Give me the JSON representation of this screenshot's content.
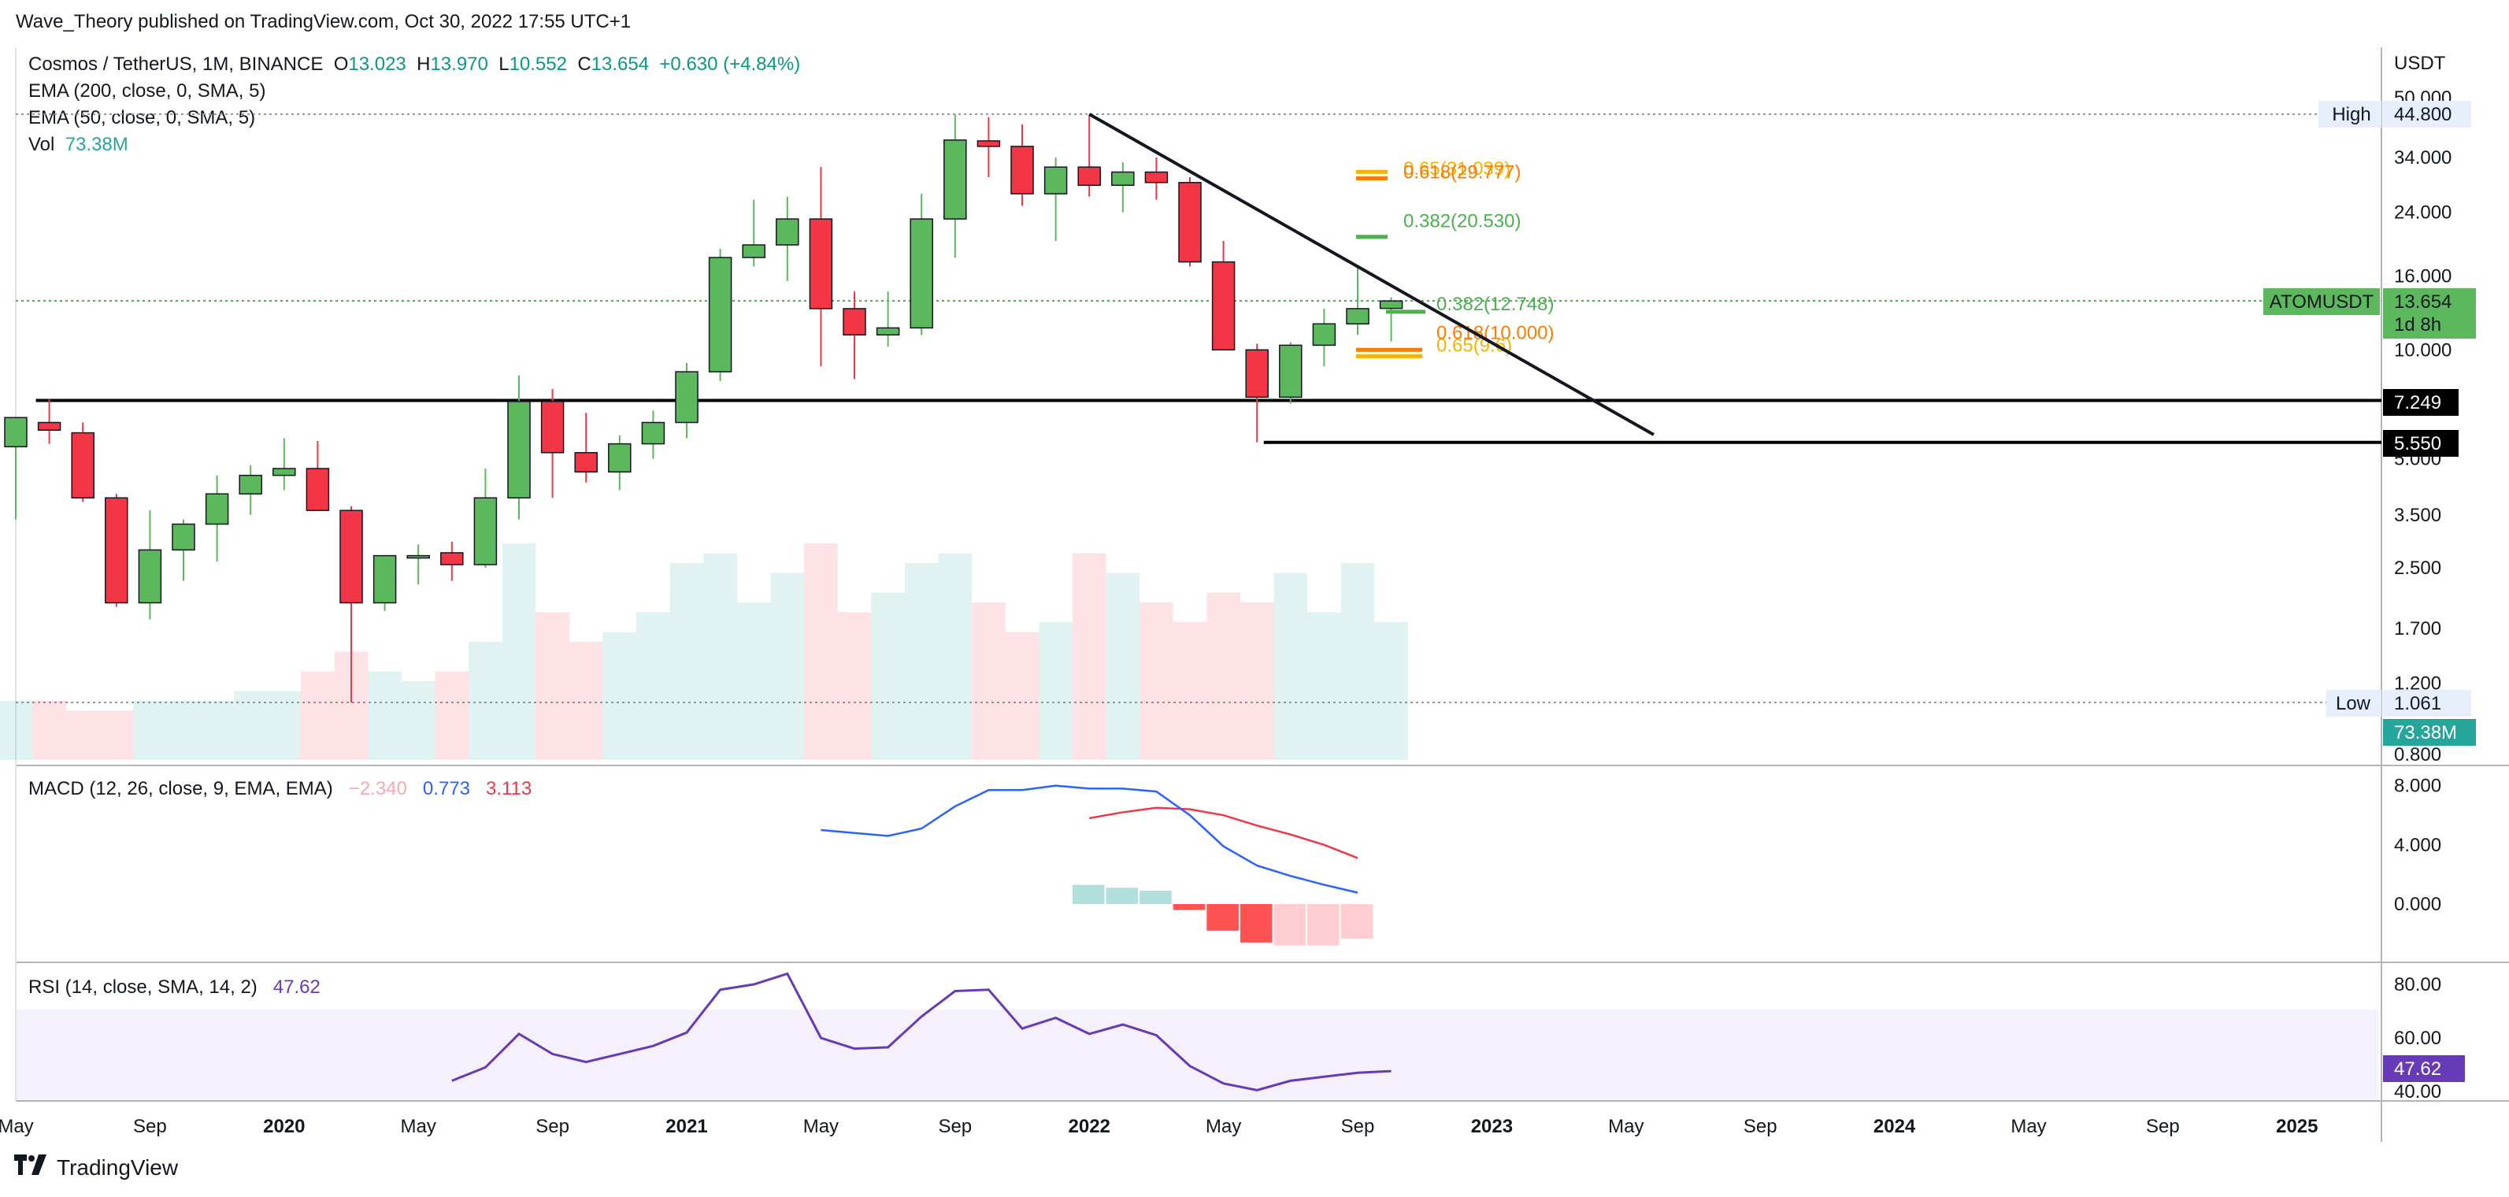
{
  "header": {
    "published": "Wave_Theory published on TradingView.com, Oct 30, 2022 17:55 UTC+1"
  },
  "footer": {
    "brand": "TradingView"
  },
  "legend": {
    "symbol": "Cosmos / TetherUS, 1M, BINANCE",
    "o_label": "O",
    "o_val": "13.023",
    "h_label": "H",
    "h_val": "13.970",
    "l_label": "L",
    "l_val": "10.552",
    "c_label": "C",
    "c_val": "13.654",
    "change": "+0.630 (+4.84%)",
    "ema200": "EMA (200, close, 0, SMA, 5)",
    "ema50": "EMA (50, close, 0, SMA, 5)",
    "vol_label": "Vol",
    "vol_val": "73.38M",
    "macd_label": "MACD (12, 26, close, 9, EMA, EMA)",
    "macd_hist": "−2.340",
    "macd_line": "0.773",
    "macd_signal": "3.113",
    "rsi_label": "RSI (14, close, SMA, 14, 2)",
    "rsi_val": "47.62"
  },
  "price_axis": {
    "unit": "USDT",
    "ticks": [
      "50.000",
      "34.000",
      "24.000",
      "16.000",
      "10.000",
      "5.000",
      "3.500",
      "2.500",
      "1.700",
      "1.200",
      "0.800"
    ],
    "high_label": "High",
    "high_val": "44.800",
    "low_label": "Low",
    "low_val": "1.061",
    "symbol_tag": "ATOMUSDT",
    "last_price": "13.654",
    "countdown": "1d 8h",
    "vol_tag": "73.38M",
    "level_1": "7.249",
    "level_2": "5.550"
  },
  "macd_axis": {
    "ticks": [
      "8.000",
      "4.000",
      "0.000"
    ]
  },
  "rsi_axis": {
    "ticks": [
      "80.00",
      "60.00",
      "40.00"
    ],
    "value_tag": "47.62"
  },
  "time_axis": {
    "labels": [
      {
        "t": "May",
        "x": 0,
        "bold": false
      },
      {
        "t": "Sep",
        "x": 4,
        "bold": false
      },
      {
        "t": "2020",
        "x": 8,
        "bold": true
      },
      {
        "t": "May",
        "x": 12,
        "bold": false
      },
      {
        "t": "Sep",
        "x": 16,
        "bold": false
      },
      {
        "t": "2021",
        "x": 20,
        "bold": true
      },
      {
        "t": "May",
        "x": 24,
        "bold": false
      },
      {
        "t": "Sep",
        "x": 28,
        "bold": false
      },
      {
        "t": "2022",
        "x": 32,
        "bold": true
      },
      {
        "t": "May",
        "x": 36,
        "bold": false
      },
      {
        "t": "Sep",
        "x": 40,
        "bold": false
      },
      {
        "t": "2023",
        "x": 44,
        "bold": true
      },
      {
        "t": "May",
        "x": 48,
        "bold": false
      },
      {
        "t": "Sep",
        "x": 52,
        "bold": false
      },
      {
        "t": "2024",
        "x": 56,
        "bold": true
      },
      {
        "t": "May",
        "x": 60,
        "bold": false
      },
      {
        "t": "Sep",
        "x": 64,
        "bold": false
      },
      {
        "t": "2025",
        "x": 68,
        "bold": true
      }
    ]
  },
  "fib_labels": {
    "upper_618": "0.618(29.777)",
    "upper_hidden": "0.65(31.039)",
    "upper_382": "0.382(20.530)",
    "lower_382": "0.382(12.748)",
    "lower_618": "0.618(10.000)",
    "lower_hidden": "0.65(9.6)"
  },
  "colors": {
    "up": "#5cb85c",
    "down": "#f23645",
    "macd": "#2962ff",
    "signal": "#f23645",
    "rsi": "#673ab7",
    "fib_gold": "#f5b400",
    "fib_orange": "#ff7b00",
    "fib_green": "#4caf50"
  },
  "chart_data": {
    "type": "candlestick",
    "title": "Cosmos / TetherUS, 1M, BINANCE",
    "x_start": "2019-05",
    "interval": "1M",
    "scale": "log",
    "candles": [
      {
        "o": 5.4,
        "h": 6.2,
        "l": 3.4,
        "c": 6.5
      },
      {
        "o": 6.3,
        "h": 7.3,
        "l": 5.5,
        "c": 6.0
      },
      {
        "o": 5.9,
        "h": 6.3,
        "l": 3.8,
        "c": 3.9
      },
      {
        "o": 3.9,
        "h": 4.0,
        "l": 1.95,
        "c": 2.0
      },
      {
        "o": 2.0,
        "h": 3.6,
        "l": 1.8,
        "c": 2.8
      },
      {
        "o": 2.8,
        "h": 3.4,
        "l": 2.3,
        "c": 3.3
      },
      {
        "o": 3.3,
        "h": 4.5,
        "l": 2.6,
        "c": 4.0
      },
      {
        "o": 4.0,
        "h": 4.8,
        "l": 3.5,
        "c": 4.5
      },
      {
        "o": 4.5,
        "h": 5.7,
        "l": 4.1,
        "c": 4.7
      },
      {
        "o": 4.7,
        "h": 5.6,
        "l": 3.8,
        "c": 3.6
      },
      {
        "o": 3.6,
        "h": 3.7,
        "l": 1.06,
        "c": 2.0
      },
      {
        "o": 2.0,
        "h": 2.7,
        "l": 1.9,
        "c": 2.7
      },
      {
        "o": 2.7,
        "h": 2.9,
        "l": 2.25,
        "c": 2.7
      },
      {
        "o": 2.75,
        "h": 2.95,
        "l": 2.3,
        "c": 2.55
      },
      {
        "o": 2.55,
        "h": 4.7,
        "l": 2.5,
        "c": 3.9
      },
      {
        "o": 3.9,
        "h": 8.5,
        "l": 3.4,
        "c": 7.2
      },
      {
        "o": 7.2,
        "h": 7.8,
        "l": 3.9,
        "c": 5.2
      },
      {
        "o": 5.2,
        "h": 6.7,
        "l": 4.3,
        "c": 4.6
      },
      {
        "o": 4.6,
        "h": 5.8,
        "l": 4.1,
        "c": 5.5
      },
      {
        "o": 5.5,
        "h": 6.8,
        "l": 5.0,
        "c": 6.3
      },
      {
        "o": 6.3,
        "h": 9.2,
        "l": 5.7,
        "c": 8.7
      },
      {
        "o": 8.7,
        "h": 19.0,
        "l": 8.2,
        "c": 18.0
      },
      {
        "o": 18.0,
        "h": 26.0,
        "l": 17.0,
        "c": 19.5
      },
      {
        "o": 19.5,
        "h": 26.5,
        "l": 15.5,
        "c": 23.0
      },
      {
        "o": 23.0,
        "h": 32.0,
        "l": 9.0,
        "c": 13.0
      },
      {
        "o": 13.0,
        "h": 14.5,
        "l": 8.3,
        "c": 11.0
      },
      {
        "o": 11.0,
        "h": 14.5,
        "l": 10.2,
        "c": 11.5
      },
      {
        "o": 11.5,
        "h": 27.0,
        "l": 11.0,
        "c": 23.0
      },
      {
        "o": 23.0,
        "h": 44.8,
        "l": 18.0,
        "c": 38.0
      },
      {
        "o": 37.8,
        "h": 44.0,
        "l": 30.0,
        "c": 36.5
      },
      {
        "o": 36.5,
        "h": 42.0,
        "l": 25.0,
        "c": 27.0
      },
      {
        "o": 27.0,
        "h": 34.0,
        "l": 20.0,
        "c": 32.0
      },
      {
        "o": 32.0,
        "h": 44.5,
        "l": 26.5,
        "c": 28.5
      },
      {
        "o": 28.5,
        "h": 33.0,
        "l": 24.0,
        "c": 31.0
      },
      {
        "o": 31.0,
        "h": 34.0,
        "l": 26.0,
        "c": 29.0
      },
      {
        "o": 29.0,
        "h": 30.0,
        "l": 17.0,
        "c": 17.5
      },
      {
        "o": 17.5,
        "h": 20.0,
        "l": 10.0,
        "c": 10.0
      },
      {
        "o": 10.0,
        "h": 10.4,
        "l": 5.55,
        "c": 7.4
      },
      {
        "o": 7.4,
        "h": 10.5,
        "l": 7.1,
        "c": 10.3
      },
      {
        "o": 10.3,
        "h": 13.0,
        "l": 9.0,
        "c": 11.8
      },
      {
        "o": 11.8,
        "h": 17.0,
        "l": 11.0,
        "c": 13.0
      },
      {
        "o": 13.02,
        "h": 13.97,
        "l": 10.55,
        "c": 13.65
      }
    ],
    "volume": [
      6,
      6,
      5,
      5,
      6,
      6,
      6,
      7,
      7,
      9,
      11,
      9,
      8,
      9,
      12,
      22,
      15,
      12,
      13,
      15,
      20,
      21,
      16,
      19,
      22,
      15,
      17,
      20,
      21,
      16,
      13,
      14,
      21,
      19,
      16,
      14,
      17,
      16,
      19,
      15,
      20,
      14
    ],
    "macd": {
      "start_index": 24,
      "line": [
        5.0,
        4.8,
        4.6,
        5.1,
        6.6,
        7.7,
        7.7,
        8.0,
        7.8,
        7.8,
        7.6,
        6.0,
        3.9,
        2.6,
        1.9,
        1.3,
        0.77
      ],
      "signal_start_index": 32,
      "signal": [
        5.8,
        6.2,
        6.5,
        6.4,
        6.0,
        5.3,
        4.7,
        4.0,
        3.11
      ],
      "hist_start_index": 32,
      "hist": [
        1.3,
        1.1,
        0.9,
        -0.4,
        -1.8,
        -2.6,
        -2.8,
        -2.8,
        -2.34
      ]
    },
    "rsi": {
      "start_index": 13,
      "values": [
        44.0,
        49.0,
        61.5,
        54.0,
        51.0,
        54.0,
        57.0,
        62.0,
        78.0,
        80.0,
        84.0,
        60.0,
        56.0,
        56.5,
        68.0,
        77.5,
        78.0,
        63.5,
        67.5,
        61.5,
        65.0,
        61.0,
        49.5,
        43.0,
        40.5,
        44.0,
        45.5,
        47.0,
        47.62
      ],
      "ylim": [
        40,
        80
      ]
    },
    "horizontal_levels": [
      7.249,
      5.55
    ],
    "fib_levels": [
      29.777,
      31.039,
      20.53,
      12.748,
      10.0,
      9.6
    ],
    "trendline": {
      "from": {
        "x": 32,
        "y": 44.8
      },
      "to": {
        "x": 49,
        "y": 5.55
      }
    }
  }
}
